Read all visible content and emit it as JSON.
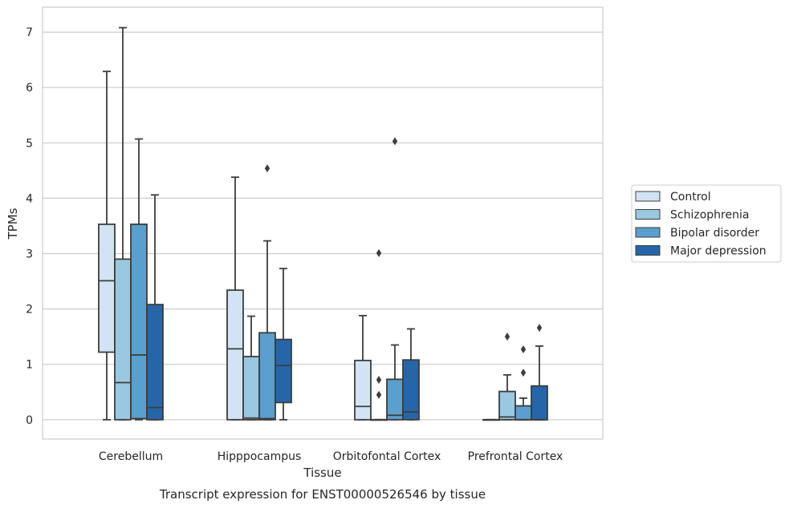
{
  "chart_data": {
    "type": "box",
    "title": "",
    "caption": "Transcript expression for ENST00000526546 by tissue",
    "xlabel": "Tissue",
    "ylabel": "TPMs",
    "ylim": [
      -0.35,
      7.45
    ],
    "yticks": [
      0,
      1,
      2,
      3,
      4,
      5,
      6,
      7
    ],
    "grid": "horizontal",
    "legend_position": "right",
    "categories": [
      "Cerebellum",
      "Hipppocampus",
      "Orbitofontal Cortex",
      "Prefrontal Cortex"
    ],
    "series": [
      {
        "name": "Control",
        "color": "#d2e3f3",
        "boxes": [
          {
            "whislo": 0,
            "q1": 1.22,
            "med": 2.51,
            "q3": 3.53,
            "whishi": 6.29,
            "fliers": []
          },
          {
            "whislo": 0,
            "q1": 0,
            "med": 1.28,
            "q3": 2.34,
            "whishi": 4.38,
            "fliers": []
          },
          {
            "whislo": 0,
            "q1": 0,
            "med": 0.24,
            "q3": 1.07,
            "whishi": 1.88,
            "fliers": []
          },
          {
            "whislo": 0,
            "q1": 0,
            "med": 0,
            "q3": 0,
            "whishi": 0,
            "fliers": []
          }
        ]
      },
      {
        "name": "Schizophrenia",
        "color": "#9ac8e0",
        "boxes": [
          {
            "whislo": 0,
            "q1": 0,
            "med": 0.67,
            "q3": 2.9,
            "whishi": 7.08,
            "fliers": []
          },
          {
            "whislo": 0,
            "q1": 0,
            "med": 0.03,
            "q3": 1.14,
            "whishi": 1.87,
            "fliers": []
          },
          {
            "whislo": 0,
            "q1": 0,
            "med": 0,
            "q3": 0,
            "whishi": 0,
            "fliers": [
              3.01,
              0.72,
              0.45
            ]
          },
          {
            "whislo": 0,
            "q1": 0,
            "med": 0.05,
            "q3": 0.51,
            "whishi": 0.81,
            "fliers": [
              1.5
            ]
          }
        ]
      },
      {
        "name": "Bipolar disorder",
        "color": "#5a9fcd",
        "boxes": [
          {
            "whislo": 0,
            "q1": 0.02,
            "med": 1.17,
            "q3": 3.53,
            "whishi": 5.07,
            "fliers": []
          },
          {
            "whislo": 0,
            "q1": 0,
            "med": 0.02,
            "q3": 1.57,
            "whishi": 3.23,
            "fliers": [
              4.54
            ]
          },
          {
            "whislo": 0,
            "q1": 0,
            "med": 0.08,
            "q3": 0.73,
            "whishi": 1.35,
            "fliers": [
              5.03
            ]
          },
          {
            "whislo": 0,
            "q1": 0,
            "med": 0,
            "q3": 0.25,
            "whishi": 0.39,
            "fliers": [
              1.27,
              0.85
            ]
          }
        ]
      },
      {
        "name": "Major depression",
        "color": "#2666a8",
        "boxes": [
          {
            "whislo": 0,
            "q1": 0,
            "med": 0.22,
            "q3": 2.08,
            "whishi": 4.06,
            "fliers": []
          },
          {
            "whislo": 0,
            "q1": 0.31,
            "med": 0.98,
            "q3": 1.45,
            "whishi": 2.73,
            "fliers": []
          },
          {
            "whislo": 0,
            "q1": 0,
            "med": 0.14,
            "q3": 1.08,
            "whishi": 1.64,
            "fliers": []
          },
          {
            "whislo": 0,
            "q1": 0,
            "med": 0,
            "q3": 0.61,
            "whishi": 1.33,
            "fliers": [
              1.66
            ]
          }
        ]
      }
    ],
    "extra_fliers_note_free": []
  }
}
